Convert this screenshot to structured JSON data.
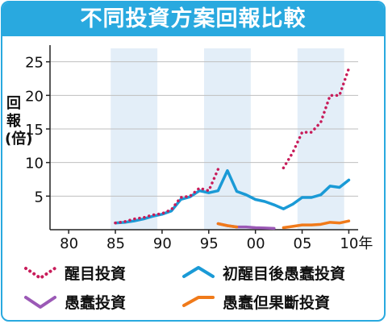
{
  "title": "不同投資方案回報比較",
  "chart_data": {
    "type": "line",
    "ylabel": "回報(倍)",
    "x_tick_labels": [
      "80",
      "85",
      "90",
      "95",
      "00",
      "05",
      "10年"
    ],
    "x_ticks": [
      1980,
      1985,
      1990,
      1995,
      2000,
      2005,
      2010
    ],
    "xlim": [
      1978,
      2011
    ],
    "y_tick_labels": [
      "5",
      "10",
      "15",
      "20",
      "25"
    ],
    "y_ticks": [
      5,
      10,
      15,
      20,
      25
    ],
    "ylim": [
      0,
      27
    ],
    "grid": true,
    "shaded_bands": [
      [
        1984.5,
        1989.5
      ],
      [
        1994.5,
        1999.5
      ],
      [
        2004.5,
        2009.5
      ]
    ],
    "series": [
      {
        "name": "醒目投資",
        "color": "#c81c5a",
        "style": "dotted",
        "segments": [
          {
            "x": [
              1985,
              1986,
              1987,
              1988,
              1989,
              1990,
              1991,
              1992,
              1993,
              1994,
              1995,
              1996
            ],
            "y": [
              1.0,
              1.2,
              1.6,
              1.8,
              2.2,
              2.4,
              3.0,
              4.8,
              5.0,
              6.2,
              5.8,
              9.0
            ]
          },
          {
            "x": [
              2003,
              2004,
              2005,
              2006,
              2007,
              2008,
              2009,
              2010
            ],
            "y": [
              9.2,
              11.5,
              14.5,
              14.5,
              16.0,
              20.0,
              20.0,
              24.0
            ]
          }
        ]
      },
      {
        "name": "初醒目後愚蠢投資",
        "color": "#1a9ad6",
        "style": "solid",
        "segments": [
          {
            "x": [
              1985,
              1986,
              1987,
              1988,
              1989,
              1990,
              1991,
              1992,
              1993,
              1994,
              1995,
              1996,
              1997,
              1998,
              1999,
              2000,
              2001,
              2002,
              2003,
              2004,
              2005,
              2006,
              2007,
              2008,
              2009,
              2010
            ],
            "y": [
              1.0,
              1.1,
              1.3,
              1.6,
              2.0,
              2.3,
              2.8,
              4.5,
              4.9,
              5.8,
              5.5,
              5.8,
              8.8,
              5.7,
              5.2,
              4.5,
              4.2,
              3.7,
              3.1,
              3.8,
              4.8,
              4.8,
              5.2,
              6.5,
              6.3,
              7.4
            ]
          }
        ]
      },
      {
        "name": "愚蠢投資",
        "color": "#9b59b6",
        "style": "solid",
        "segments": [
          {
            "x": [
              1996,
              1997,
              1998,
              1999,
              2000,
              2001,
              2002
            ],
            "y": [
              0.9,
              0.6,
              0.4,
              0.4,
              0.3,
              0.25,
              0.2
            ]
          }
        ]
      },
      {
        "name": "愚蠢但果斷投資",
        "color": "#f07a1a",
        "style": "solid",
        "segments": [
          {
            "x": [
              1996,
              1997,
              1998
            ],
            "y": [
              0.9,
              0.6,
              0.4
            ]
          },
          {
            "x": [
              2003,
              2004,
              2005,
              2006,
              2007,
              2008,
              2009,
              2010
            ],
            "y": [
              0.3,
              0.5,
              0.7,
              0.7,
              0.8,
              1.1,
              1.0,
              1.3
            ]
          }
        ]
      }
    ]
  }
}
